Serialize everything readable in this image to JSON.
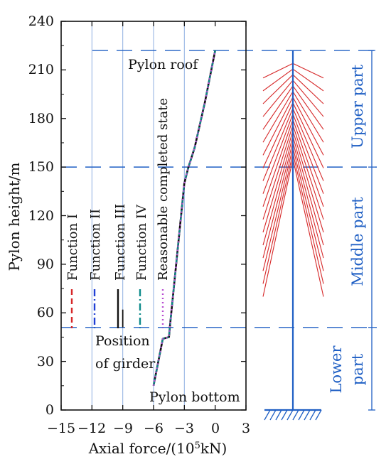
{
  "chart_data": {
    "type": "line",
    "xlabel": "Axial force/(10⁵kN)",
    "ylabel": "Pylon height/m",
    "xlim": [
      -15,
      3
    ],
    "ylim": [
      0,
      240
    ],
    "x_ticks": [
      "−15",
      "−12",
      "−9",
      "−6",
      "−3",
      "0",
      "3"
    ],
    "y_ticks": [
      "0",
      "30",
      "60",
      "90",
      "120",
      "150",
      "180",
      "210",
      "240"
    ],
    "grid": "dashed horizontal lines at y=222, 150, 51 and vertical lines at x=−12, −9, −6, −3",
    "series": [
      {
        "name": "Function I",
        "color": "#d62728",
        "dash": "dashed",
        "x": [
          -6.0,
          -5.1,
          -4.5,
          -4.4,
          -3.0,
          -2.6,
          -2.0,
          -1.0,
          0.0
        ],
        "y": [
          15,
          44,
          45,
          52,
          140,
          150,
          162,
          190,
          222
        ]
      },
      {
        "name": "Function II",
        "color": "#1f3fd6",
        "dash": "dashdot",
        "x": [
          -6.0,
          -5.1,
          -4.5,
          -4.4,
          -3.0,
          -2.6,
          -2.0,
          -1.0,
          0.0
        ],
        "y": [
          15,
          44,
          45,
          52,
          140,
          150,
          162,
          190,
          222
        ]
      },
      {
        "name": "Function III",
        "color": "#111111",
        "dash": "solid",
        "x": [
          -6.0,
          -5.1,
          -4.5,
          -4.4,
          -3.0,
          -2.6,
          -2.0,
          -1.0,
          0.0
        ],
        "y": [
          15,
          44,
          45,
          52,
          140,
          150,
          162,
          190,
          222
        ]
      },
      {
        "name": "Function IV",
        "color": "#0e8a8a",
        "dash": "dashdot",
        "x": [
          -6.0,
          -5.1,
          -4.5,
          -4.4,
          -3.0,
          -2.6,
          -2.0,
          -1.0,
          0.0
        ],
        "y": [
          15,
          44,
          45,
          52,
          140,
          150,
          162,
          190,
          222
        ]
      },
      {
        "name": "Reasonable completed state",
        "color": "#b84ed1",
        "dash": "dotted",
        "x": [
          -6.0,
          -5.1,
          -4.5,
          -4.4,
          -3.0,
          -2.6,
          -2.0,
          -1.0,
          0.0
        ],
        "y": [
          15,
          44,
          45,
          52,
          140,
          150,
          162,
          190,
          222
        ]
      }
    ],
    "annotations": {
      "roof": "Pylon roof",
      "bottom": "Pylon bottom",
      "girder_line1": "Position",
      "girder_line2": "of girder"
    },
    "regions": [
      {
        "label": "Upper part",
        "from": 150,
        "to": 222
      },
      {
        "label": "Middle part",
        "from": 51,
        "to": 150
      },
      {
        "label": "Lower part",
        "line1": "Lower",
        "line2": "part",
        "from": 0,
        "to": 51
      }
    ],
    "levels": {
      "roof": 222,
      "girder": 51,
      "middle": 150
    },
    "colors": {
      "grid": "#1f5fc4",
      "cable": "#d62728",
      "pylon": "#1f5fc4",
      "axis": "#111111"
    }
  }
}
